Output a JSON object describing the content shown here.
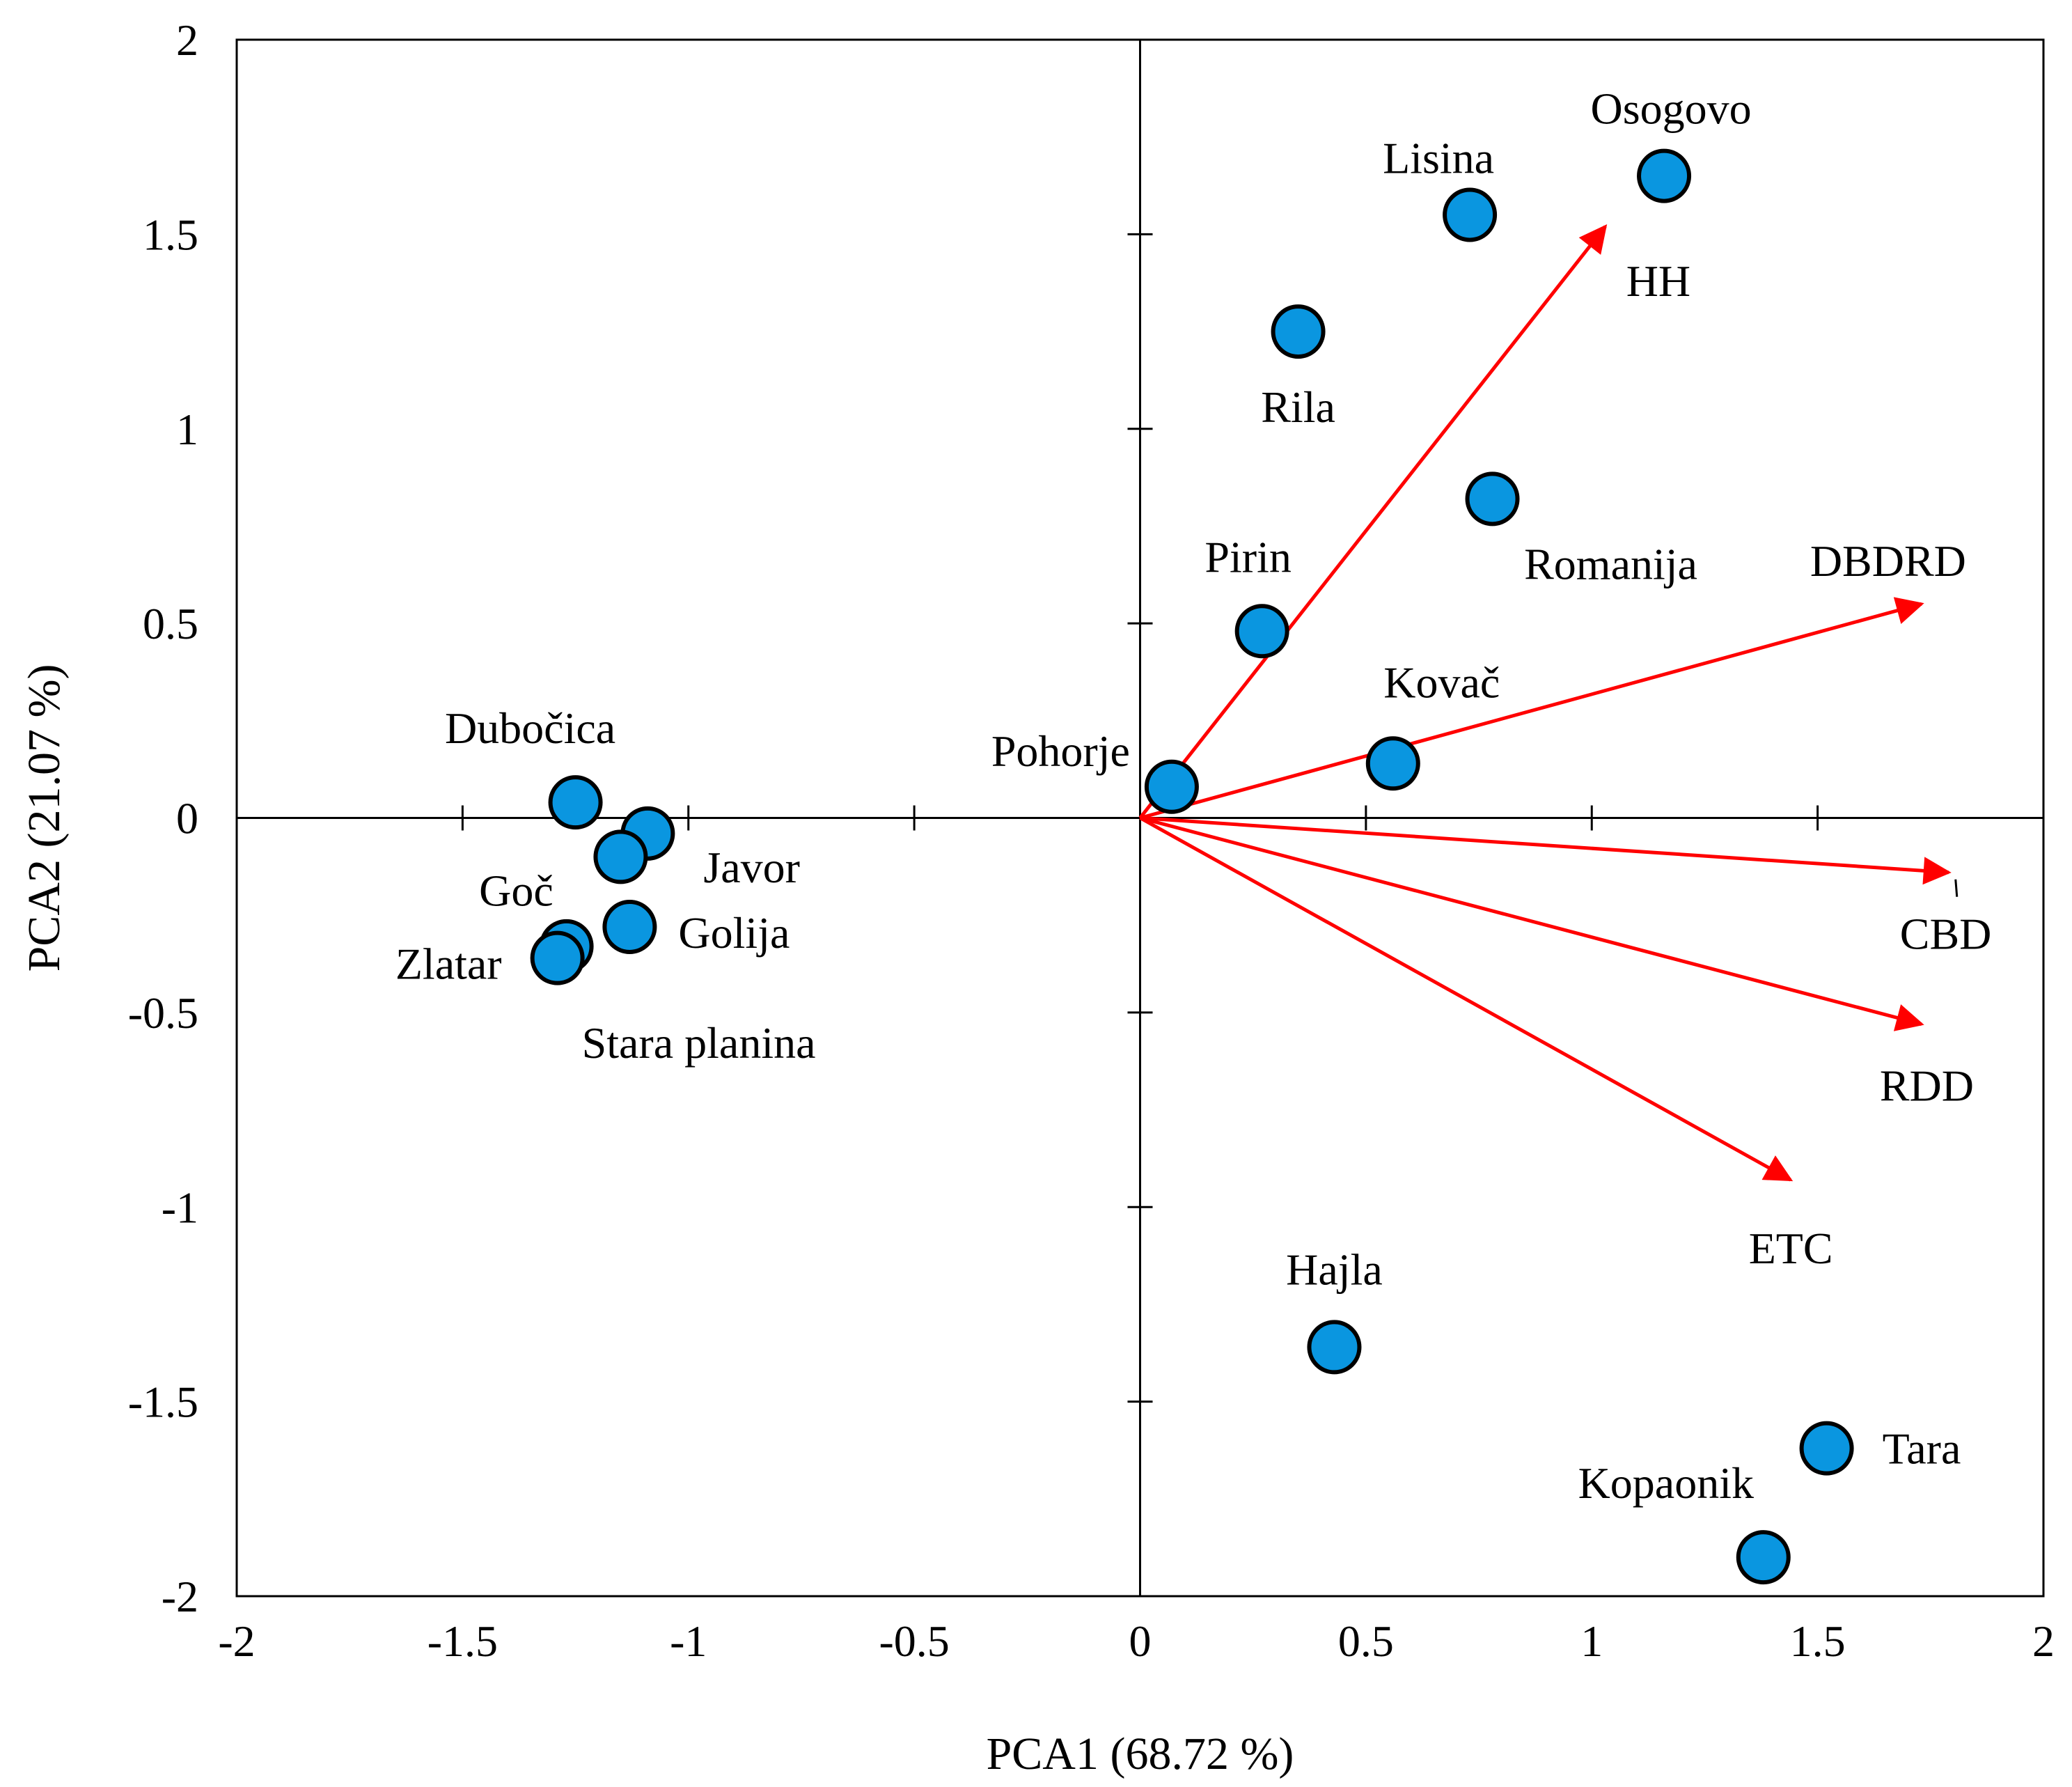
{
  "chart_data": {
    "type": "scatter",
    "xlabel": "PCA1 (68.72 %)",
    "ylabel": "PCA2 (21.07 %)",
    "xlim": [
      -2,
      2
    ],
    "ylim": [
      -2,
      2
    ],
    "x_ticks": [
      "-2",
      "-1.5",
      "-1",
      "-0.5",
      "0",
      "0.5",
      "1",
      "1.5",
      "2"
    ],
    "y_ticks": [
      "-2",
      "-1.5",
      "-1",
      "-0.5",
      "0",
      "0.5",
      "1",
      "1.5",
      "2"
    ],
    "grid": false,
    "points": [
      {
        "name": "Osogovo",
        "x": 1.16,
        "y": 1.65
      },
      {
        "name": "Lisina",
        "x": 0.73,
        "y": 1.55
      },
      {
        "name": "Rila",
        "x": 0.35,
        "y": 1.25
      },
      {
        "name": "Romanija",
        "x": 0.78,
        "y": 0.82
      },
      {
        "name": "Pirin",
        "x": 0.27,
        "y": 0.48
      },
      {
        "name": "Kovač",
        "x": 0.56,
        "y": 0.14
      },
      {
        "name": "Pohorje",
        "x": 0.07,
        "y": 0.08
      },
      {
        "name": "Dubočica",
        "x": -1.25,
        "y": 0.04
      },
      {
        "name": "Javor",
        "x": -1.09,
        "y": -0.04
      },
      {
        "name": "Goč",
        "x": -1.15,
        "y": -0.1
      },
      {
        "name": "Golija",
        "x": -1.13,
        "y": -0.28
      },
      {
        "name": "Stara planina",
        "x": -1.27,
        "y": -0.33
      },
      {
        "name": "Zlatar",
        "x": -1.29,
        "y": -0.36
      },
      {
        "name": "Hajla",
        "x": 0.43,
        "y": -1.36
      },
      {
        "name": "Tara",
        "x": 1.52,
        "y": -1.62
      },
      {
        "name": "Kopaonik",
        "x": 1.38,
        "y": -1.9
      }
    ],
    "vectors": [
      {
        "name": "HH",
        "x": 1.03,
        "y": 1.52
      },
      {
        "name": "DBDRD",
        "x": 1.73,
        "y": 0.55
      },
      {
        "name": "CBD",
        "x": 1.79,
        "y": -0.14
      },
      {
        "name": "RDD",
        "x": 1.73,
        "y": -0.53
      },
      {
        "name": "ETC",
        "x": 1.44,
        "y": -0.93
      }
    ],
    "colors": {
      "points": "#0a96e0",
      "vectors": "#ff0000"
    }
  }
}
